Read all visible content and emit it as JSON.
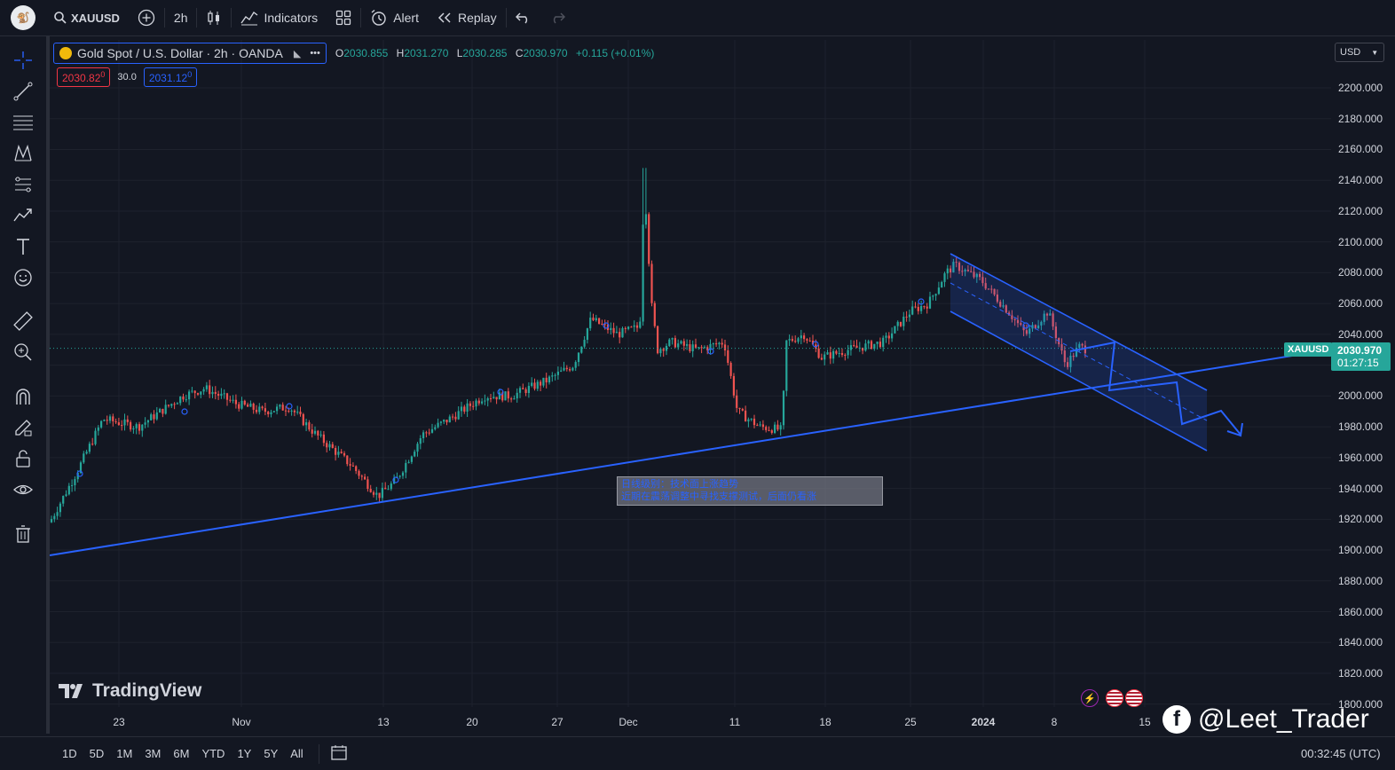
{
  "topbar": {
    "avatar": "🐒",
    "symbol": "XAUUSD",
    "interval": "2h",
    "indicators": "Indicators",
    "alert": "Alert",
    "replay": "Replay"
  },
  "legend": {
    "title": "Gold Spot / U.S. Dollar · 2h · OANDA",
    "o_label": "O",
    "o_value": "2030.855",
    "h_label": "H",
    "h_value": "2031.270",
    "l_label": "L",
    "l_value": "2030.285",
    "c_label": "C",
    "c_value": "2030.970",
    "change": "+0.115 (+0.01%)",
    "sell_price": "2030.82",
    "sell_sup": "0",
    "spread": "30.0",
    "buy_price": "2031.12",
    "buy_sup": "0"
  },
  "currency": "USD",
  "price_axis": [
    "2200.000",
    "2180.000",
    "2160.000",
    "2140.000",
    "2120.000",
    "2100.000",
    "2080.000",
    "2060.000",
    "2040.000",
    "2020.000",
    "2000.000",
    "1980.000",
    "1960.000",
    "1940.000",
    "1920.000",
    "1900.000",
    "1880.000",
    "1860.000",
    "1840.000",
    "1820.000",
    "1800.000"
  ],
  "time_axis": [
    "23",
    "Nov",
    "13",
    "20",
    "27",
    "Dec",
    "11",
    "18",
    "25",
    "2024",
    "8",
    "15"
  ],
  "last_price": {
    "symbol": "XAUUSD",
    "value": "2030.970",
    "countdown": "01:27:15"
  },
  "annotation": {
    "line1": "日线级别：技术面上涨趋势",
    "line2": "近期在震荡调整中寻找支撑测试，后面仍看涨"
  },
  "watermark": "TradingView",
  "author": "@Leet_Trader",
  "bottombar": {
    "ranges": [
      "1D",
      "5D",
      "1M",
      "3M",
      "6M",
      "YTD",
      "1Y",
      "5Y",
      "All"
    ],
    "clock": "00:32:45 (UTC)"
  },
  "colors": {
    "up": "#26a69a",
    "down": "#ef5350",
    "accent": "#2962ff",
    "bg": "#131722"
  },
  "icons": [
    "crosshair-icon",
    "trendline-icon",
    "fib-icon",
    "pattern-icon",
    "projection-icon",
    "forecast-icon",
    "text-icon",
    "emoji-icon",
    "ruler-icon",
    "zoom-icon",
    "magnet-icon",
    "lock-draw-icon",
    "lock-icon",
    "eye-icon",
    "trash-icon"
  ]
}
